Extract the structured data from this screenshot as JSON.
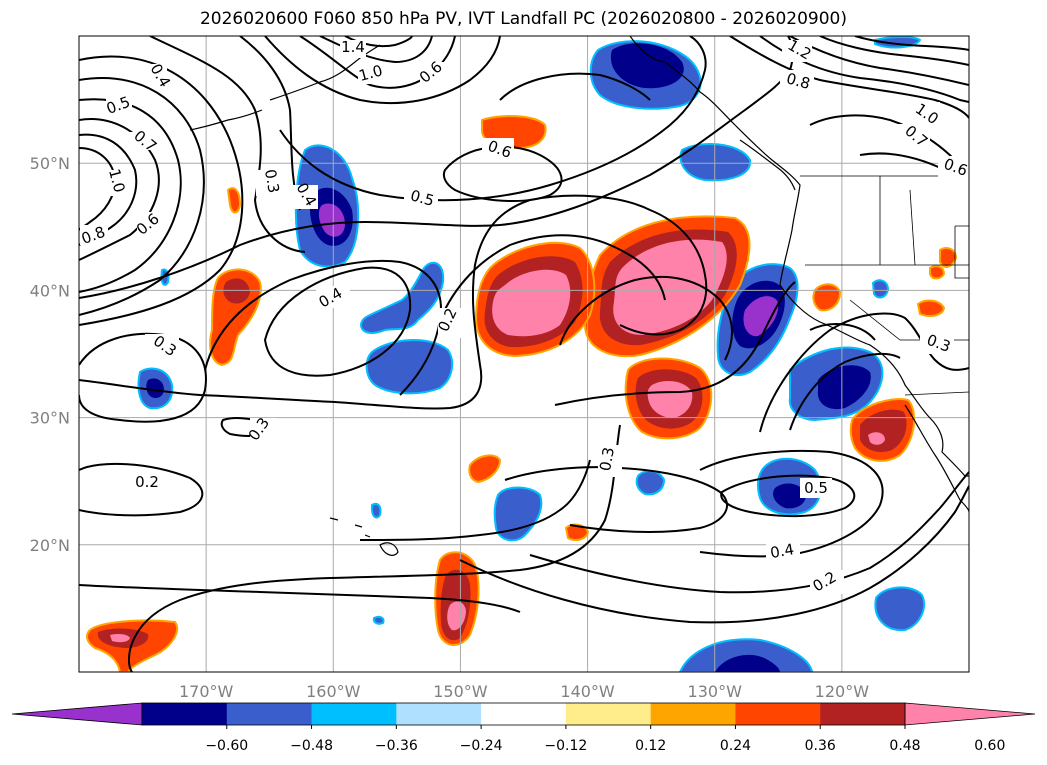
{
  "title": "2026020600 F060 850 hPa PV, IVT Landfall PC (2026020800 - 2026020900)",
  "map": {
    "lon_range": [
      -180,
      -110
    ],
    "lat_range": [
      10,
      60
    ],
    "lon_ticks": [
      -170,
      -160,
      -150,
      -140,
      -130,
      -120
    ],
    "lat_ticks": [
      20,
      30,
      40,
      50
    ],
    "lon_labels": [
      "170°W",
      "160°W",
      "150°W",
      "140°W",
      "130°W",
      "120°W"
    ],
    "lat_labels": [
      "20°N",
      "30°N",
      "40°N",
      "50°N"
    ],
    "grid": true
  },
  "contour_labels": [
    "0.4",
    "0.5",
    "0.7",
    "1.0",
    "0.8",
    "0.6",
    "0.3",
    "0.4",
    "1.4",
    "1.0",
    "0.6",
    "0.6",
    "0.5",
    "1.2",
    "0.8",
    "1.0",
    "0.7",
    "0.6",
    "0.4",
    "0.3",
    "0.2",
    "0.3",
    "0.3",
    "0.2",
    "0.3",
    "0.5",
    "0.4",
    "0.2"
  ],
  "colorbar": {
    "levels": [
      -0.72,
      -0.6,
      -0.48,
      -0.36,
      -0.24,
      -0.12,
      0.12,
      0.24,
      0.36,
      0.48,
      0.6,
      0.72
    ],
    "colors": [
      "#9932CC",
      "#00008B",
      "#3A5FCD",
      "#00BFFF",
      "#B0E0FF",
      "#FFFFFF",
      "#FFEC8B",
      "#FFA500",
      "#FF4500",
      "#B22222",
      "#FF82AB"
    ],
    "tick_labels": [
      "−0.60",
      "−0.48",
      "−0.36",
      "−0.24",
      "−0.12",
      "0.12",
      "0.24",
      "0.36",
      "0.48",
      "0.60"
    ]
  }
}
